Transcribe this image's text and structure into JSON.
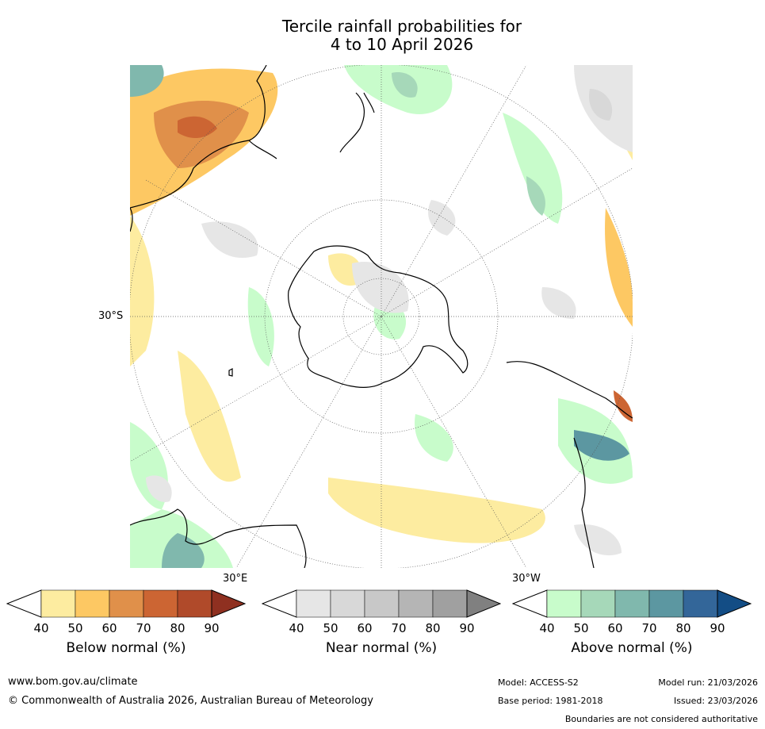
{
  "title": {
    "line1": "Tercile rainfall probabilities for",
    "line2": "4 to 10 April 2026"
  },
  "map_labels": {
    "lat": "30°S",
    "lon_east": "30°E",
    "lon_west": "30°W"
  },
  "colorbars": [
    {
      "name": "below",
      "title": "Below normal (%)",
      "ticks": [
        "40",
        "50",
        "60",
        "70",
        "80",
        "90"
      ],
      "colors": [
        "#fdeca0",
        "#fdc863",
        "#e0904a",
        "#cc6533",
        "#b04a2a",
        "#8f3020"
      ],
      "under": "#ffffff"
    },
    {
      "name": "near",
      "title": "Near normal (%)",
      "ticks": [
        "40",
        "50",
        "60",
        "70",
        "80",
        "90"
      ],
      "colors": [
        "#e6e6e6",
        "#d8d8d8",
        "#c8c8c8",
        "#b5b5b5",
        "#a0a0a0",
        "#808080"
      ],
      "under": "#ffffff"
    },
    {
      "name": "above",
      "title": "Above normal (%)",
      "ticks": [
        "40",
        "50",
        "60",
        "70",
        "80",
        "90"
      ],
      "colors": [
        "#c8fccb",
        "#a6d8b9",
        "#80b8ad",
        "#5c97a1",
        "#336699",
        "#134d85"
      ],
      "under": "#ffffff"
    }
  ],
  "footer": {
    "url": "www.bom.gov.au/climate",
    "copyright": "© Commonwealth of Australia 2026, Australian Bureau of Meteorology",
    "model": "Model: ACCESS-S2",
    "model_run": "Model run: 21/03/2026",
    "base_period": "Base period: 1981-2018",
    "issued": "Issued: 23/03/2026",
    "disclaimer": "Boundaries are not considered authoritative"
  }
}
